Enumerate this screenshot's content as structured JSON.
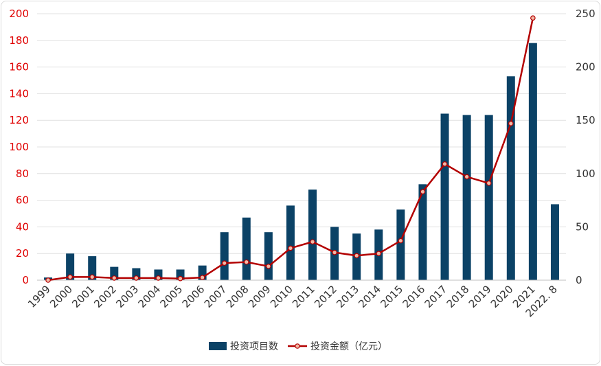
{
  "chart_data": {
    "type": "bar",
    "categories": [
      "1999",
      "2000",
      "2001",
      "2002",
      "2003",
      "2004",
      "2005",
      "2006",
      "2007",
      "2008",
      "2009",
      "2010",
      "2011",
      "2012",
      "2013",
      "2014",
      "2015",
      "2016",
      "2017",
      "2018",
      "2019",
      "2020",
      "2021",
      "2022. 8"
    ],
    "series": [
      {
        "name": "投资项目数",
        "type": "bar",
        "axis": "left",
        "color": "#0b4266",
        "values": [
          2,
          20,
          18,
          10,
          9,
          8,
          8,
          11,
          36,
          47,
          36,
          56,
          68,
          40,
          35,
          38,
          53,
          72,
          125,
          124,
          124,
          153,
          178,
          57
        ]
      },
      {
        "name": "投资金额（亿元）",
        "type": "line",
        "axis": "right",
        "color": "#b30000",
        "values": [
          0,
          3,
          3,
          2,
          2,
          2,
          1.5,
          2.5,
          16,
          17,
          13,
          30,
          36,
          26,
          23,
          25,
          37,
          83,
          109,
          97,
          91,
          147,
          246,
          null
        ]
      }
    ],
    "yleft": {
      "min": 0,
      "max": 200,
      "ticks": [
        0,
        20,
        40,
        60,
        80,
        100,
        120,
        140,
        160,
        180,
        200
      ],
      "tick_color": "#e00000"
    },
    "yright": {
      "min": 0,
      "max": 250,
      "ticks": [
        0,
        50,
        100,
        150,
        200,
        250
      ],
      "tick_color": "#333333"
    },
    "grid": true,
    "legend": "bottom"
  }
}
